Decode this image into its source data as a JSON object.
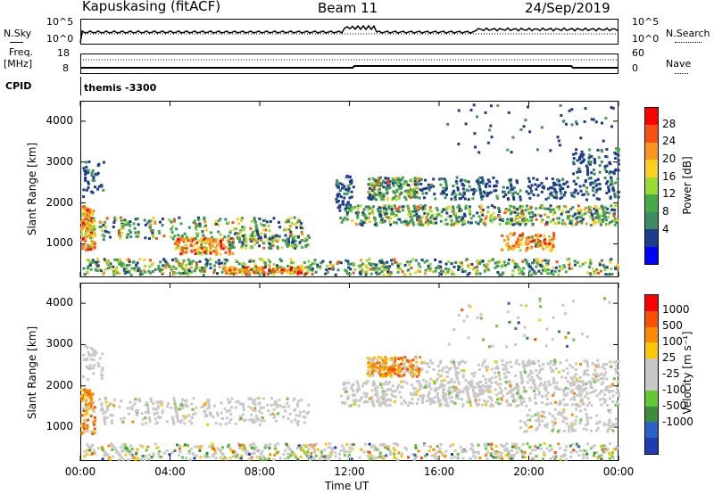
{
  "header": {
    "station": "Kapuskasing (fitACF)",
    "beam": "Beam 11",
    "date": "24/Sep/2019"
  },
  "top_panels": {
    "nsky_label": "N.Sky",
    "nsky_ticks": [
      "10^5",
      "10^0"
    ],
    "nsearch_label": "N.Search",
    "nsearch_ticks": [
      "10^5",
      "10^0"
    ],
    "freq_label_1": "Freq.",
    "freq_label_2": "[MHz]",
    "freq_ticks": [
      "18",
      "8"
    ],
    "nave_label": "Nave",
    "nave_ticks": [
      "60",
      "0"
    ],
    "cpid_label": "CPID",
    "cpid_value": "themis -3300"
  },
  "chart_data": [
    {
      "type": "heatmap",
      "ylabel": "Slant Range [km]",
      "y_ticks": [
        "4000",
        "3000",
        "2000",
        "1000"
      ],
      "y_values": [
        4000,
        3000,
        2000,
        1000
      ],
      "ylim": [
        180,
        4500
      ],
      "colorbar_label": "Power [dB]",
      "colorbar_ticks": [
        "28",
        "24",
        "20",
        "16",
        "12",
        "8",
        "4"
      ],
      "colors": [
        "#0000ff",
        "#1e3c8c",
        "#3c8c64",
        "#46aa46",
        "#96dc32",
        "#fad21e",
        "#fa961e",
        "#fa5014",
        "#ff0000"
      ]
    },
    {
      "type": "heatmap",
      "ylabel": "Slant Range [km]",
      "y_ticks": [
        "4000",
        "3000",
        "2000",
        "1000"
      ],
      "y_values": [
        4000,
        3000,
        2000,
        1000
      ],
      "ylim": [
        180,
        4500
      ],
      "xlabel": "Time UT",
      "x_ticks": [
        "00:00",
        "04:00",
        "08:00",
        "12:00",
        "16:00",
        "20:00",
        "00:00"
      ],
      "colorbar_label": "Velocity [m s⁻¹]",
      "colorbar_ticks": [
        "1000",
        "500",
        "100",
        "25",
        "-25",
        "-100",
        "-500",
        "-1000"
      ],
      "colors": [
        "#1e3cb4",
        "#2864c8",
        "#3c8c3c",
        "#64c832",
        "#c8c8c8",
        "#c8c8c8",
        "#fac800",
        "#fa8c00",
        "#fa5000",
        "#ff0000"
      ]
    }
  ]
}
